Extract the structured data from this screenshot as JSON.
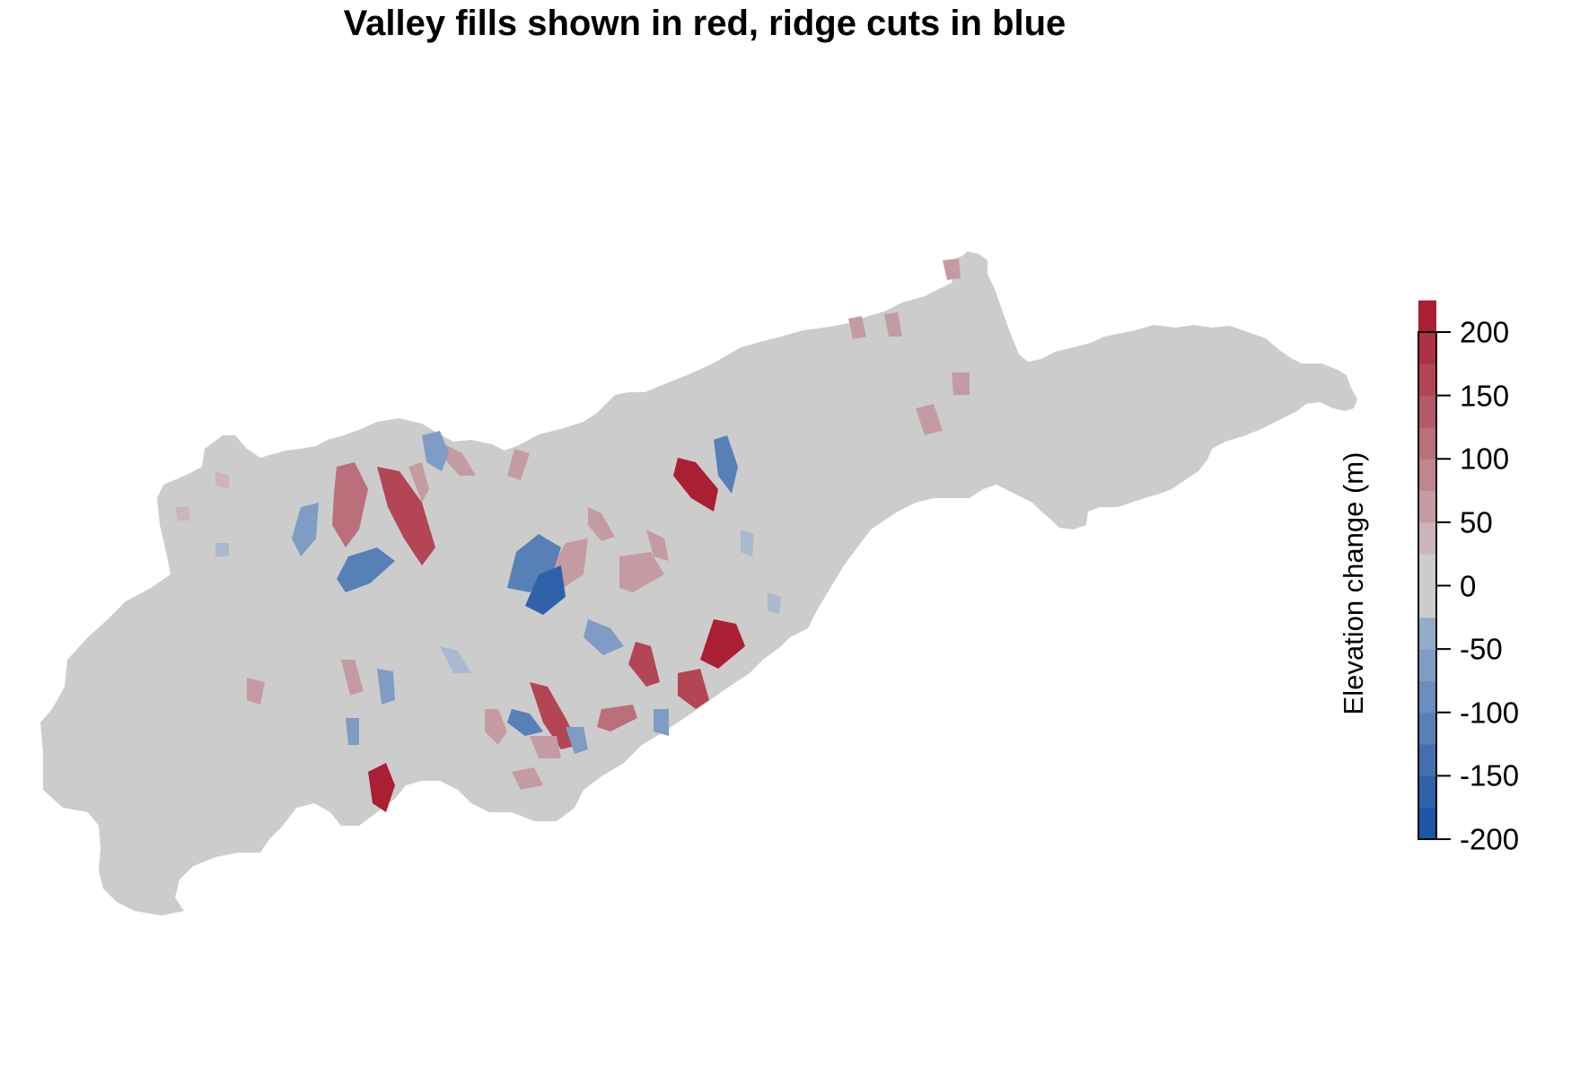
{
  "title": "Valley fills shown in red, ridge cuts in blue",
  "map": {
    "background_fill": "#cccccc",
    "fill_color": "#b11f33",
    "cut_color": "#225aa6"
  },
  "legend": {
    "title": "Elevation change (m)",
    "range": [
      -200,
      200
    ],
    "step": 25,
    "ticks": [
      "200",
      "150",
      "100",
      "50",
      "0",
      "-50",
      "-100",
      "-150",
      "-200"
    ],
    "band_colors": [
      "#1f55a5",
      "#3062aa",
      "#436faf",
      "#5780b7",
      "#6b8ebe",
      "#7f9cc4",
      "#93aac9",
      "#aab9d0",
      "#cccccc",
      "#ccb4ba",
      "#c59ba3",
      "#c0858f",
      "#bb6f7b",
      "#b65968",
      "#b34555",
      "#b03143",
      "#aa1f33"
    ]
  }
}
